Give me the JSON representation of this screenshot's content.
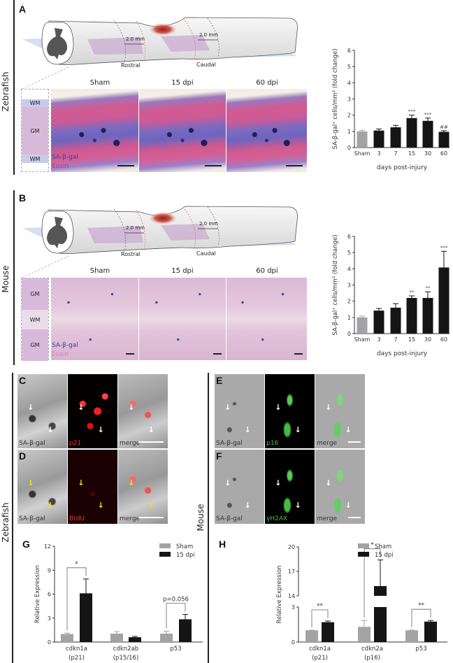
{
  "panels": {
    "A": "A",
    "B": "B",
    "C": "C",
    "D": "D",
    "E": "E",
    "F": "F",
    "G": "G",
    "H": "H"
  },
  "species": {
    "zebrafish": "Zebrafish",
    "mouse": "Mouse"
  },
  "diagram": {
    "distance": "2.0 mm",
    "rostral": "Rostral",
    "caudal": "Caudal"
  },
  "histology": {
    "columns": [
      "Sham",
      "15 dpi",
      "60 dpi"
    ],
    "zebrafish_layers": [
      "WM",
      "GM",
      "WM"
    ],
    "mouse_layers": [
      "GM",
      "WM",
      "GM"
    ],
    "stain_1": "SA-β-gal",
    "stain_2": "Eosin"
  },
  "fluorescence": {
    "C": [
      "SA-β-gal",
      "p21",
      "merge"
    ],
    "D": [
      "SA-β-gal",
      "BrdU",
      "merge"
    ],
    "E": [
      "SA-β-gal",
      "p16",
      "merge"
    ],
    "F": [
      "SA-β-gal",
      "γH2AX",
      "merge"
    ]
  },
  "colors": {
    "sham": "#a3a3a5",
    "treated": "#151515",
    "red": "#e2231a",
    "green": "#4cbb4c",
    "yellow": "#f5e400"
  },
  "chart_data": [
    {
      "type": "bar",
      "panel": "A",
      "title": "",
      "xlabel": "days post-injury",
      "ylabel": "SA-β-gal⁺ cells/mm² (fold change)",
      "categories": [
        "Sham",
        "3",
        "7",
        "15",
        "30",
        "60"
      ],
      "values": [
        1.0,
        1.05,
        1.25,
        1.82,
        1.65,
        0.97
      ],
      "errors": [
        0.07,
        0.1,
        0.12,
        0.18,
        0.17,
        0.07
      ],
      "annotations": [
        "",
        "",
        "",
        "***",
        "***",
        "##"
      ],
      "ylim": [
        0,
        6
      ],
      "yticks": [
        0,
        1,
        2,
        3,
        4,
        5,
        6
      ]
    },
    {
      "type": "bar",
      "panel": "B",
      "title": "",
      "xlabel": "days post-injury",
      "ylabel": "SA-β-gal⁺ cells/mm² (fold change)",
      "categories": [
        "Sham",
        "3",
        "7",
        "15",
        "30",
        "60"
      ],
      "values": [
        1.0,
        1.42,
        1.6,
        2.2,
        2.2,
        4.08
      ],
      "errors": [
        0.08,
        0.13,
        0.25,
        0.13,
        0.38,
        1.0
      ],
      "annotations": [
        "",
        "",
        "",
        "**",
        "**",
        "***"
      ],
      "ylim": [
        0,
        6
      ],
      "yticks": [
        0,
        1,
        2,
        3,
        4,
        5,
        6
      ]
    },
    {
      "type": "bar",
      "panel": "G",
      "ylabel": "Relative Expression",
      "xlabel": "",
      "categories": [
        "cdkn1a",
        "cdkn2ab",
        "p53"
      ],
      "category_sublabels": [
        "(p21)",
        "(p15/16)",
        ""
      ],
      "series": [
        {
          "name": "Sham",
          "values": [
            1.0,
            1.05,
            1.05
          ],
          "errors": [
            0.12,
            0.25,
            0.3
          ]
        },
        {
          "name": "15 dpi",
          "values": [
            6.1,
            0.6,
            2.85
          ],
          "errors": [
            1.8,
            0.1,
            0.6
          ]
        }
      ],
      "comparisons": [
        "*",
        "",
        "p=0.056"
      ],
      "ylim": [
        0,
        12
      ],
      "yticks": [
        0,
        3,
        6,
        9,
        12
      ],
      "legend": "top-right"
    },
    {
      "type": "bar",
      "panel": "H",
      "ylabel": "Relative Expression",
      "xlabel": "",
      "categories": [
        "cdkn1a",
        "cdkn2a",
        "p53"
      ],
      "category_sublabels": [
        "(p21)",
        "(p16)",
        ""
      ],
      "series": [
        {
          "name": "Sham",
          "values": [
            1.0,
            1.3,
            1.0
          ],
          "errors": [
            0.02,
            0.55,
            0.03
          ]
        },
        {
          "name": "15 dpi",
          "values": [
            1.7,
            15.2,
            1.75
          ],
          "errors": [
            0.1,
            3.2,
            0.1
          ]
        }
      ],
      "comparisons": [
        "**",
        "*",
        "**"
      ],
      "ylim": [
        0,
        20
      ],
      "axis_break": [
        3,
        14
      ],
      "yticks": [
        0,
        3,
        14,
        17,
        20
      ],
      "legend": "top-right"
    }
  ]
}
